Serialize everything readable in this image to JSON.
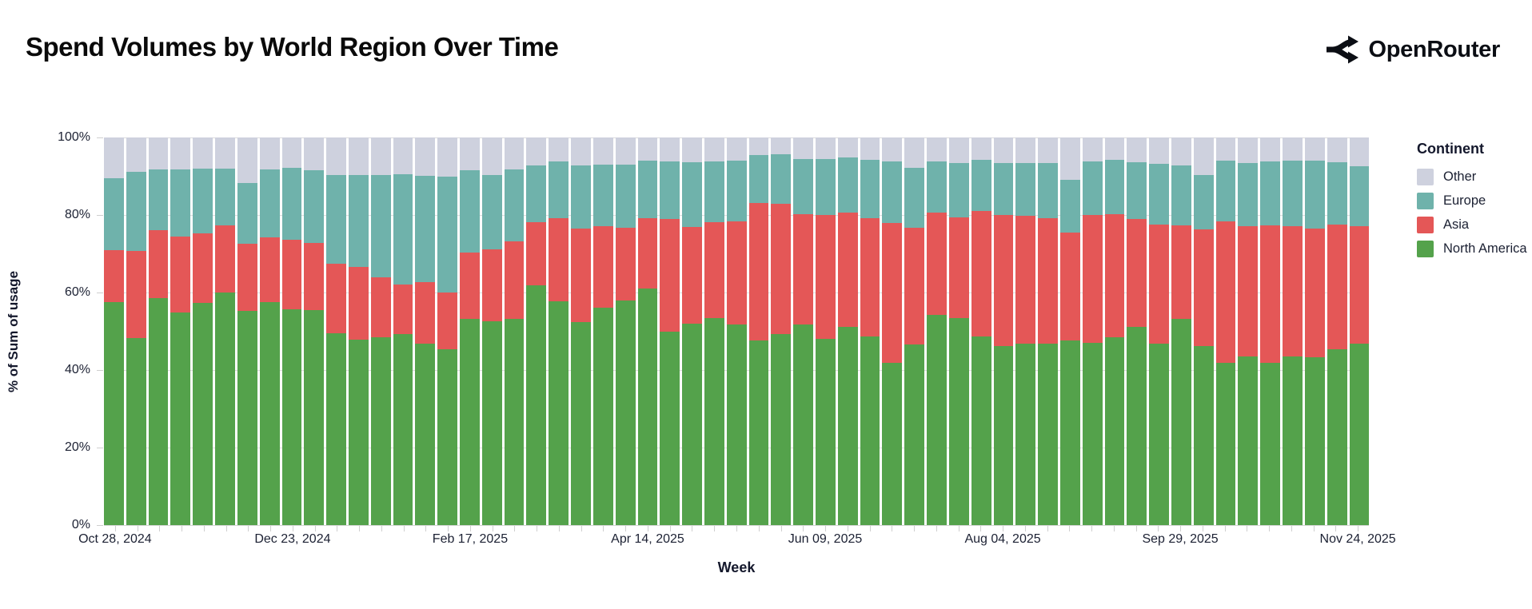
{
  "header": {
    "title": "Spend Volumes by World Region Over Time",
    "brand": "OpenRouter"
  },
  "chart_data": {
    "type": "bar",
    "stacked": true,
    "normalized": true,
    "title": "Spend Volumes by World Region Over Time",
    "xlabel": "Week",
    "ylabel": "% of Sum of usage",
    "ylim": [
      0,
      100
    ],
    "grid": true,
    "y_ticks": [
      {
        "value": 0,
        "label": "0%"
      },
      {
        "value": 20,
        "label": "20%"
      },
      {
        "value": 40,
        "label": "40%"
      },
      {
        "value": 60,
        "label": "60%"
      },
      {
        "value": 80,
        "label": "80%"
      },
      {
        "value": 100,
        "label": "100%"
      }
    ],
    "x_tick_labels": [
      "Oct 28, 2024",
      "Dec 23, 2024",
      "Feb 17, 2025",
      "Apr 14, 2025",
      "Jun 09, 2025",
      "Aug 04, 2025",
      "Sep 29, 2025",
      "Nov 24, 2025"
    ],
    "x_tick_week_indices": [
      0,
      8,
      16,
      24,
      32,
      40,
      48,
      56
    ],
    "legend": {
      "title": "Continent",
      "position": "right",
      "items": [
        {
          "label": "Other",
          "color": "#ced1de"
        },
        {
          "label": "Europe",
          "color": "#6fb2ab"
        },
        {
          "label": "Asia",
          "color": "#e45757"
        },
        {
          "label": "North America",
          "color": "#54a24b"
        }
      ]
    },
    "stack_order_bottom_to_top": [
      "North America",
      "Asia",
      "Europe",
      "Other"
    ],
    "categories": [
      "Oct 28, 2024",
      "Nov 04, 2024",
      "Nov 11, 2024",
      "Nov 18, 2024",
      "Nov 25, 2024",
      "Dec 02, 2024",
      "Dec 09, 2024",
      "Dec 16, 2024",
      "Dec 23, 2024",
      "Dec 30, 2024",
      "Jan 06, 2025",
      "Jan 13, 2025",
      "Jan 20, 2025",
      "Jan 27, 2025",
      "Feb 03, 2025",
      "Feb 10, 2025",
      "Feb 17, 2025",
      "Feb 24, 2025",
      "Mar 03, 2025",
      "Mar 10, 2025",
      "Mar 17, 2025",
      "Mar 24, 2025",
      "Mar 31, 2025",
      "Apr 07, 2025",
      "Apr 14, 2025",
      "Apr 21, 2025",
      "Apr 28, 2025",
      "May 05, 2025",
      "May 12, 2025",
      "May 19, 2025",
      "May 26, 2025",
      "Jun 02, 2025",
      "Jun 09, 2025",
      "Jun 16, 2025",
      "Jun 23, 2025",
      "Jun 30, 2025",
      "Jul 07, 2025",
      "Jul 14, 2025",
      "Jul 21, 2025",
      "Jul 28, 2025",
      "Aug 04, 2025",
      "Aug 11, 2025",
      "Aug 18, 2025",
      "Aug 25, 2025",
      "Sep 01, 2025",
      "Sep 08, 2025",
      "Sep 15, 2025",
      "Sep 22, 2025",
      "Sep 29, 2025",
      "Oct 06, 2025",
      "Oct 13, 2025",
      "Oct 20, 2025",
      "Oct 27, 2025",
      "Nov 03, 2025",
      "Nov 10, 2025",
      "Nov 17, 2025",
      "Nov 24, 2025"
    ],
    "series": [
      {
        "name": "North America",
        "color": "#54a24b",
        "values": [
          57.6,
          48.3,
          58.6,
          54.8,
          57.3,
          59.9,
          55.2,
          57.6,
          55.7,
          55.5,
          49.5,
          47.8,
          48.5,
          49.2,
          46.8,
          45.4,
          53.3,
          52.5,
          53.3,
          61.8,
          57.8,
          52.3,
          56.1,
          57.9,
          61.1,
          49.9,
          52.0,
          53.5,
          51.8,
          47.6,
          49.2,
          51.8,
          48.0,
          51.1,
          48.7,
          41.9,
          46.5,
          54.2,
          53.5,
          48.7,
          46.1,
          46.9,
          46.8,
          47.6,
          47.1,
          48.5,
          51.1,
          46.8,
          53.1,
          46.2,
          41.9,
          43.5,
          41.9,
          43.5,
          43.4,
          45.3,
          46.9
        ]
      },
      {
        "name": "Asia",
        "color": "#e45757",
        "values": [
          13.3,
          22.4,
          17.4,
          19.7,
          18.0,
          17.4,
          17.4,
          16.7,
          17.9,
          17.3,
          17.9,
          18.8,
          15.5,
          12.9,
          15.8,
          14.5,
          17.0,
          18.6,
          20.0,
          16.3,
          21.4,
          24.2,
          21.1,
          18.8,
          18.0,
          29.1,
          24.9,
          24.7,
          26.6,
          35.4,
          33.7,
          28.5,
          31.9,
          29.5,
          30.5,
          36.0,
          30.2,
          26.4,
          25.9,
          32.3,
          34.0,
          32.9,
          32.4,
          27.9,
          32.8,
          31.8,
          27.9,
          30.8,
          24.3,
          30.0,
          36.5,
          33.6,
          35.5,
          33.7,
          33.1,
          32.3,
          30.3
        ]
      },
      {
        "name": "Europe",
        "color": "#6fb2ab",
        "values": [
          18.6,
          20.4,
          15.8,
          17.3,
          16.7,
          14.7,
          15.6,
          17.5,
          18.6,
          18.7,
          23.0,
          23.8,
          26.4,
          28.5,
          27.5,
          29.9,
          21.2,
          19.3,
          18.5,
          14.6,
          14.7,
          16.2,
          15.7,
          16.2,
          15.0,
          14.9,
          16.8,
          15.7,
          15.7,
          12.5,
          12.7,
          14.1,
          14.5,
          14.3,
          15.0,
          16.0,
          15.5,
          13.3,
          14.0,
          13.2,
          13.3,
          13.7,
          14.2,
          13.6,
          14.0,
          13.9,
          14.7,
          15.6,
          15.3,
          14.1,
          15.7,
          16.4,
          16.5,
          16.9,
          17.6,
          16.1,
          15.3
        ]
      },
      {
        "name": "Other",
        "color": "#ced1de",
        "values": [
          10.5,
          8.9,
          8.2,
          8.2,
          8.0,
          8.0,
          11.8,
          8.2,
          7.8,
          8.5,
          9.6,
          9.6,
          9.6,
          9.4,
          9.9,
          10.2,
          8.5,
          9.6,
          8.2,
          7.3,
          6.1,
          7.3,
          7.1,
          7.1,
          5.9,
          6.1,
          6.3,
          6.1,
          5.9,
          4.5,
          4.4,
          5.6,
          5.6,
          5.1,
          5.8,
          6.1,
          7.8,
          6.1,
          6.6,
          5.8,
          6.6,
          6.5,
          6.6,
          10.9,
          6.1,
          5.8,
          6.3,
          6.8,
          7.3,
          9.7,
          5.9,
          6.5,
          6.1,
          5.9,
          5.9,
          6.3,
          7.5
        ]
      }
    ]
  }
}
